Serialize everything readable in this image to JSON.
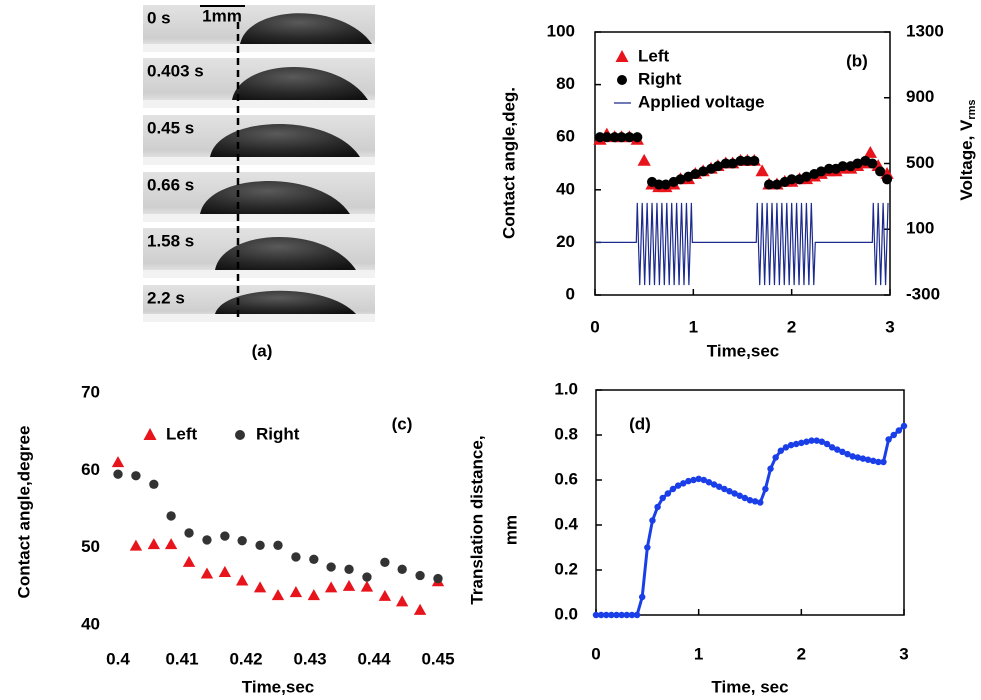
{
  "photo": {
    "frames": [
      "0 s",
      "0.403 s",
      "0.45 s",
      "0.66 s",
      "1.58 s",
      "2.2 s"
    ],
    "scale_bar": "1mm",
    "panel_label": "(a)"
  },
  "chart_data": [
    {
      "type": "scatter",
      "panel_label": "(b)",
      "xlabel": "Time,sec",
      "ylabel": "Contact angle,deg.",
      "y2label": "Voltage, V",
      "y2label_sub": "rms",
      "xlim": [
        0,
        3
      ],
      "xticks": [
        0,
        1,
        2,
        3
      ],
      "ylim": [
        0,
        100
      ],
      "yticks": [
        0,
        20,
        40,
        60,
        80,
        100
      ],
      "y2lim": [
        -300,
        1300
      ],
      "y2ticks": [
        -300,
        100,
        500,
        900,
        1300
      ],
      "legend": "upper left",
      "series": [
        {
          "name": "Left",
          "color": "#e8141c",
          "marker": "triangle",
          "x": [
            0.05,
            0.12,
            0.2,
            0.27,
            0.35,
            0.43,
            0.5,
            0.58,
            0.65,
            0.72,
            0.8,
            0.87,
            0.95,
            1.02,
            1.1,
            1.18,
            1.25,
            1.33,
            1.4,
            1.48,
            1.55,
            1.62,
            1.7,
            1.77,
            1.85,
            1.93,
            2.0,
            2.08,
            2.15,
            2.23,
            2.3,
            2.38,
            2.45,
            2.52,
            2.6,
            2.67,
            2.75,
            2.8,
            2.88,
            2.97
          ],
          "values": [
            59,
            61,
            60,
            60,
            60,
            59,
            51,
            42,
            41,
            41,
            42,
            44,
            44,
            46,
            47,
            48,
            49,
            50,
            50,
            51,
            51,
            51,
            47,
            42,
            42,
            43,
            43,
            44,
            44,
            45,
            46,
            47,
            47,
            48,
            48,
            49,
            50,
            54,
            49,
            46
          ]
        },
        {
          "name": "Right",
          "color": "#000000",
          "marker": "circle",
          "x": [
            0.05,
            0.12,
            0.2,
            0.27,
            0.35,
            0.43,
            0.58,
            0.65,
            0.72,
            0.8,
            0.87,
            0.95,
            1.02,
            1.1,
            1.18,
            1.25,
            1.33,
            1.4,
            1.48,
            1.55,
            1.62,
            1.77,
            1.85,
            1.93,
            2.0,
            2.08,
            2.15,
            2.23,
            2.3,
            2.38,
            2.45,
            2.52,
            2.6,
            2.67,
            2.75,
            2.82,
            2.9,
            2.97
          ],
          "values": [
            60,
            60,
            60,
            60,
            60,
            60,
            43,
            42,
            42,
            43,
            44,
            45,
            46,
            47,
            48,
            49,
            50,
            50,
            51,
            51,
            51,
            42,
            42,
            43,
            44,
            44,
            45,
            46,
            47,
            48,
            48,
            49,
            49,
            50,
            51,
            50,
            47,
            44
          ]
        },
        {
          "name": "Applied voltage",
          "color": "#1c2a8c",
          "marker": "line",
          "axis": "y2",
          "x": [
            0,
            0.42,
            0.43,
            0.455,
            0.48,
            0.505,
            0.53,
            0.555,
            0.58,
            0.605,
            0.63,
            0.655,
            0.68,
            0.705,
            0.73,
            0.755,
            0.78,
            0.805,
            0.83,
            0.855,
            0.88,
            0.905,
            0.93,
            0.955,
            0.98,
            0.99,
            1.64,
            1.65,
            1.675,
            1.7,
            1.725,
            1.75,
            1.775,
            1.8,
            1.825,
            1.85,
            1.875,
            1.9,
            1.925,
            1.95,
            1.975,
            2.0,
            2.025,
            2.05,
            2.075,
            2.1,
            2.125,
            2.15,
            2.175,
            2.2,
            2.225,
            2.24,
            2.82,
            2.83,
            2.855,
            2.88,
            2.905,
            2.93,
            2.955,
            2.98
          ],
          "values": [
            20,
            20,
            260,
            -240,
            260,
            -240,
            260,
            -240,
            260,
            -240,
            260,
            -240,
            260,
            -240,
            260,
            -240,
            260,
            -240,
            260,
            -240,
            260,
            -240,
            260,
            -240,
            260,
            20,
            20,
            260,
            -240,
            260,
            -240,
            260,
            -240,
            260,
            -240,
            260,
            -240,
            260,
            -240,
            260,
            -240,
            260,
            -240,
            260,
            -240,
            260,
            -240,
            260,
            -240,
            260,
            -240,
            20,
            20,
            260,
            -240,
            260,
            -240,
            260,
            -240,
            260
          ]
        }
      ]
    },
    {
      "type": "scatter",
      "panel_label": "(c)",
      "xlabel": "Time,sec",
      "ylabel": "Contact angle,degree",
      "xlim": [
        0.4,
        0.45
      ],
      "xticks": [
        0.4,
        0.41,
        0.42,
        0.43,
        0.44,
        0.45
      ],
      "ylim": [
        40,
        70
      ],
      "yticks": [
        40,
        50,
        60,
        70
      ],
      "legend": "upper left",
      "series": [
        {
          "name": "Left",
          "color": "#e8141c",
          "marker": "triangle",
          "x": [
            0.4,
            0.4028,
            0.4056,
            0.4083,
            0.4111,
            0.4139,
            0.4167,
            0.4194,
            0.4222,
            0.425,
            0.4278,
            0.4306,
            0.4333,
            0.4361,
            0.4389,
            0.4417,
            0.4444,
            0.4472,
            0.45
          ],
          "values": [
            61,
            50.2,
            50.4,
            50.4,
            48.1,
            46.6,
            46.8,
            45.7,
            44.8,
            43.8,
            44.2,
            43.8,
            44.8,
            45.0,
            44.9,
            43.7,
            43.0,
            41.9,
            45.6
          ]
        },
        {
          "name": "Right",
          "color": "#333333",
          "marker": "circle",
          "x": [
            0.4,
            0.4028,
            0.4056,
            0.4083,
            0.4111,
            0.4139,
            0.4167,
            0.4194,
            0.4222,
            0.425,
            0.4278,
            0.4306,
            0.4333,
            0.4361,
            0.4389,
            0.4417,
            0.4444,
            0.4472,
            0.45
          ],
          "values": [
            59.5,
            59.3,
            58.2,
            54.1,
            51.9,
            51.0,
            51.5,
            50.9,
            50.3,
            50.3,
            48.8,
            48.5,
            47.5,
            47.2,
            46.2,
            48.1,
            47.2,
            46.4,
            46.0
          ]
        }
      ]
    },
    {
      "type": "line",
      "panel_label": "(d)",
      "xlabel": "Time, sec",
      "ylabel": [
        "Translation distance,",
        "mm"
      ],
      "xlim": [
        0,
        3
      ],
      "xticks": [
        0,
        1,
        2,
        3
      ],
      "ylim": [
        0,
        1
      ],
      "yticks": [
        {
          "value": 0,
          "label": "0.0"
        },
        0.2,
        0.4,
        0.6,
        0.8,
        {
          "value": 1,
          "label": "1.0"
        }
      ],
      "series": [
        {
          "color": "#1a3fe8",
          "marker": "circle",
          "x": [
            0,
            0.05,
            0.1,
            0.15,
            0.2,
            0.25,
            0.3,
            0.35,
            0.4,
            0.45,
            0.5,
            0.55,
            0.6,
            0.65,
            0.7,
            0.75,
            0.8,
            0.85,
            0.9,
            0.95,
            1.0,
            1.05,
            1.1,
            1.15,
            1.2,
            1.25,
            1.3,
            1.35,
            1.4,
            1.45,
            1.5,
            1.55,
            1.6,
            1.65,
            1.7,
            1.75,
            1.8,
            1.85,
            1.9,
            1.95,
            2.0,
            2.05,
            2.1,
            2.15,
            2.2,
            2.25,
            2.3,
            2.35,
            2.4,
            2.45,
            2.5,
            2.55,
            2.6,
            2.65,
            2.7,
            2.75,
            2.8,
            2.85,
            2.9,
            2.95,
            3.0
          ],
          "values": [
            0,
            0,
            0,
            0,
            0,
            0,
            0,
            0,
            0,
            0.08,
            0.3,
            0.42,
            0.48,
            0.52,
            0.54,
            0.56,
            0.575,
            0.585,
            0.595,
            0.6,
            0.605,
            0.6,
            0.59,
            0.58,
            0.57,
            0.56,
            0.55,
            0.54,
            0.53,
            0.52,
            0.51,
            0.505,
            0.5,
            0.56,
            0.65,
            0.7,
            0.73,
            0.745,
            0.755,
            0.76,
            0.765,
            0.77,
            0.775,
            0.775,
            0.77,
            0.76,
            0.745,
            0.735,
            0.725,
            0.715,
            0.705,
            0.7,
            0.695,
            0.69,
            0.685,
            0.68,
            0.68,
            0.78,
            0.8,
            0.82,
            0.84
          ]
        }
      ]
    }
  ]
}
